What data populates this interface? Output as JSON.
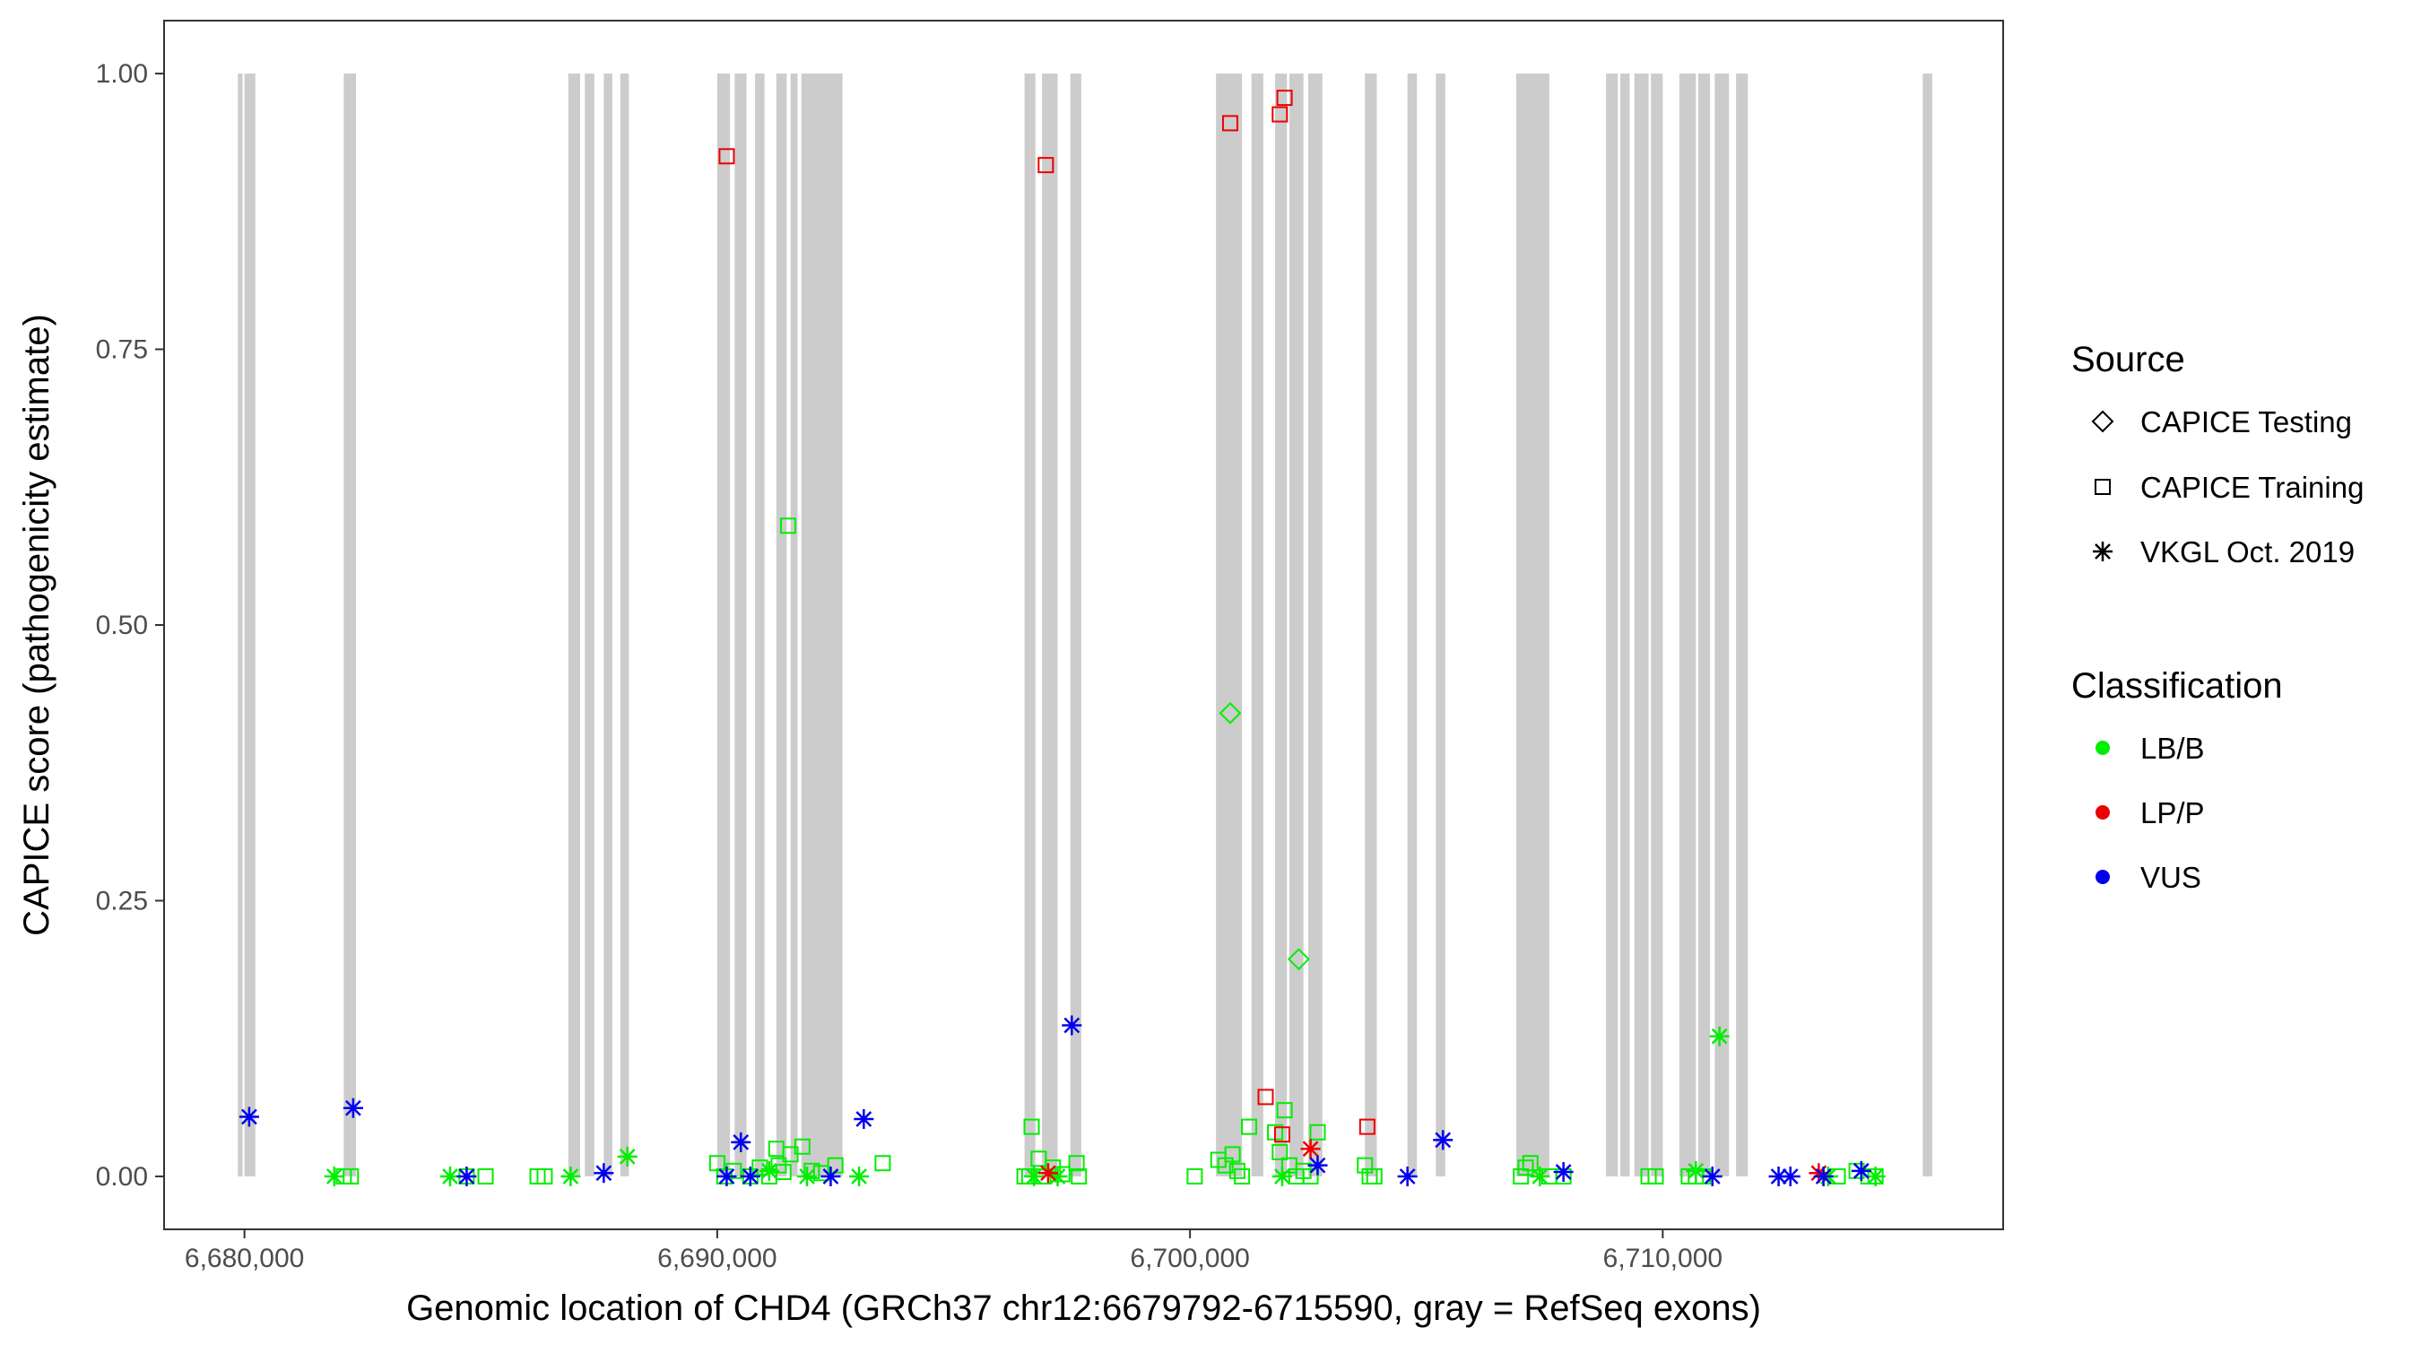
{
  "chart_data": {
    "type": "scatter",
    "xlabel": "Genomic location of CHD4 (GRCh37 chr12:6679792-6715590, gray = RefSeq exons)",
    "ylabel": "CAPICE score (pathogenicity estimate)",
    "xlim": [
      6678300,
      6717200
    ],
    "ylim": [
      -0.048,
      1.048
    ],
    "x_ticks": [
      6680000,
      6690000,
      6700000,
      6710000
    ],
    "x_tick_labels": [
      "6,680,000",
      "6,690,000",
      "6,700,000",
      "6,710,000"
    ],
    "y_ticks": [
      0,
      0.25,
      0.5,
      0.75,
      1
    ],
    "y_tick_labels": [
      "0.00",
      "0.25",
      "0.50",
      "0.75",
      "1.00"
    ],
    "grid": false,
    "exon_color": "#cccccc",
    "exons": [
      [
        6679860,
        6679960
      ],
      [
        6680000,
        6680230
      ],
      [
        6682100,
        6682360
      ],
      [
        6686850,
        6687100
      ],
      [
        6687200,
        6687400
      ],
      [
        6687600,
        6687780
      ],
      [
        6687950,
        6688130
      ],
      [
        6690000,
        6690270
      ],
      [
        6690370,
        6690620
      ],
      [
        6690800,
        6691000
      ],
      [
        6691250,
        6691470
      ],
      [
        6691550,
        6691700
      ],
      [
        6691780,
        6692650
      ],
      [
        6696500,
        6696730
      ],
      [
        6696870,
        6697200
      ],
      [
        6697470,
        6697700
      ],
      [
        6700550,
        6701100
      ],
      [
        6701300,
        6701550
      ],
      [
        6701800,
        6702050
      ],
      [
        6702100,
        6702400
      ],
      [
        6702500,
        6702800
      ],
      [
        6703700,
        6703950
      ],
      [
        6704600,
        6704800
      ],
      [
        6705200,
        6705400
      ],
      [
        6706900,
        6707300
      ],
      [
        6707300,
        6707600
      ],
      [
        6708800,
        6709050
      ],
      [
        6709100,
        6709300
      ],
      [
        6709400,
        6709700
      ],
      [
        6709750,
        6710000
      ],
      [
        6710350,
        6710700
      ],
      [
        6710750,
        6711000
      ],
      [
        6711100,
        6711400
      ],
      [
        6711550,
        6711800
      ],
      [
        6715500,
        6715700
      ]
    ],
    "legend": {
      "source_title": "Source",
      "source_entries": [
        {
          "label": "CAPICE Testing",
          "shape": "diamond"
        },
        {
          "label": "CAPICE Training",
          "shape": "square"
        },
        {
          "label": "VKGL Oct. 2019",
          "shape": "asterisk"
        }
      ],
      "class_title": "Classification",
      "class_entries": [
        {
          "label": "LB/B",
          "color": "#00ee00"
        },
        {
          "label": "LP/P",
          "color": "#ee0000"
        },
        {
          "label": "VUS",
          "color": "#0000ee"
        }
      ]
    },
    "series": [
      {
        "shape": "square",
        "color": "#00ee00",
        "points": [
          [
            6682100,
            0
          ],
          [
            6682250,
            0
          ],
          [
            6684700,
            0
          ],
          [
            6685100,
            0
          ],
          [
            6686200,
            0
          ],
          [
            6686350,
            0
          ],
          [
            6690000,
            0.012
          ],
          [
            6690150,
            0
          ],
          [
            6690350,
            0.005
          ],
          [
            6690700,
            0
          ],
          [
            6690900,
            0.008
          ],
          [
            6691100,
            0
          ],
          [
            6691250,
            0.025
          ],
          [
            6691300,
            0.01
          ],
          [
            6691400,
            0.004
          ],
          [
            6691500,
            0.59
          ],
          [
            6691550,
            0.02
          ],
          [
            6691800,
            0.027
          ],
          [
            6692000,
            0.005
          ],
          [
            6692200,
            0.003
          ],
          [
            6692500,
            0.01
          ],
          [
            6693500,
            0.012
          ],
          [
            6696500,
            0
          ],
          [
            6696600,
            0
          ],
          [
            6696650,
            0.045
          ],
          [
            6696800,
            0.016
          ],
          [
            6696900,
            0
          ],
          [
            6697100,
            0.008
          ],
          [
            6697300,
            0.002
          ],
          [
            6697600,
            0.012
          ],
          [
            6697650,
            0
          ],
          [
            6700100,
            0
          ],
          [
            6700600,
            0.015
          ],
          [
            6700750,
            0.01
          ],
          [
            6700900,
            0.02
          ],
          [
            6701000,
            0.005
          ],
          [
            6701100,
            0
          ],
          [
            6701250,
            0.045
          ],
          [
            6701800,
            0.04
          ],
          [
            6701900,
            0.022
          ],
          [
            6702000,
            0.06
          ],
          [
            6702100,
            0.01
          ],
          [
            6702250,
            0
          ],
          [
            6702400,
            0.005
          ],
          [
            6702550,
            0
          ],
          [
            6702700,
            0.04
          ],
          [
            6703700,
            0.01
          ],
          [
            6703800,
            0
          ],
          [
            6703900,
            0
          ],
          [
            6707000,
            0
          ],
          [
            6707100,
            0.008
          ],
          [
            6707200,
            0.012
          ],
          [
            6707600,
            0
          ],
          [
            6707900,
            0
          ],
          [
            6709700,
            0
          ],
          [
            6709850,
            0
          ],
          [
            6710550,
            0
          ],
          [
            6710700,
            0
          ],
          [
            6710850,
            0
          ],
          [
            6713700,
            0
          ],
          [
            6714100,
            0.005
          ],
          [
            6714350,
            0
          ],
          [
            6714500,
            0
          ]
        ]
      },
      {
        "shape": "square",
        "color": "#ee0000",
        "points": [
          [
            6690200,
            0.925
          ],
          [
            6696950,
            0.917
          ],
          [
            6700850,
            0.955
          ],
          [
            6701600,
            0.072
          ],
          [
            6701900,
            0.963
          ],
          [
            6702000,
            0.978
          ],
          [
            6701950,
            0.038
          ],
          [
            6703750,
            0.045
          ]
        ]
      },
      {
        "shape": "diamond",
        "color": "#00ee00",
        "points": [
          [
            6700850,
            0.42
          ],
          [
            6702300,
            0.197
          ]
        ]
      },
      {
        "shape": "asterisk",
        "color": "#00ee00",
        "points": [
          [
            6681900,
            0
          ],
          [
            6684350,
            0
          ],
          [
            6686900,
            0
          ],
          [
            6688100,
            0.018
          ],
          [
            6691100,
            0.005
          ],
          [
            6691900,
            0
          ],
          [
            6693000,
            0
          ],
          [
            6696700,
            0
          ],
          [
            6697200,
            0
          ],
          [
            6701950,
            0
          ],
          [
            6707400,
            0
          ],
          [
            6710700,
            0.005
          ],
          [
            6711200,
            0.127
          ],
          [
            6713500,
            0
          ],
          [
            6714500,
            0
          ]
        ]
      },
      {
        "shape": "asterisk",
        "color": "#ee0000",
        "points": [
          [
            6697000,
            0.003
          ],
          [
            6702550,
            0.025
          ],
          [
            6713300,
            0.003
          ]
        ]
      },
      {
        "shape": "asterisk",
        "color": "#0000ee",
        "points": [
          [
            6680100,
            0.054
          ],
          [
            6682300,
            0.062
          ],
          [
            6684700,
            0
          ],
          [
            6687600,
            0.003
          ],
          [
            6690200,
            0
          ],
          [
            6690500,
            0.031
          ],
          [
            6690700,
            0
          ],
          [
            6692400,
            0
          ],
          [
            6693100,
            0.052
          ],
          [
            6697500,
            0.137
          ],
          [
            6702700,
            0.01
          ],
          [
            6704600,
            0
          ],
          [
            6705350,
            0.033
          ],
          [
            6707900,
            0.004
          ],
          [
            6711050,
            0
          ],
          [
            6712450,
            0
          ],
          [
            6712700,
            0
          ],
          [
            6713400,
            0
          ],
          [
            6714200,
            0.005
          ]
        ]
      }
    ]
  }
}
